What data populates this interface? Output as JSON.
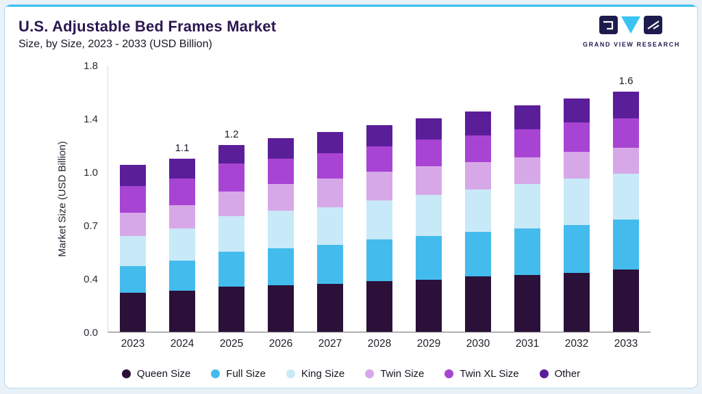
{
  "page": {
    "title": "U.S. Adjustable Bed Frames Market",
    "subtitle": "Size, by Size, 2023 - 2033 (USD Billion)",
    "brand": "GRAND VIEW RESEARCH"
  },
  "colors": {
    "accent_line": "#3bc4f2",
    "card_border": "#b9d7ea",
    "page_background": "#e9f2f9",
    "title_text": "#2b1650",
    "logo_navy": "#1e1b4d",
    "logo_cyan": "#3bc4f2"
  },
  "chart_data": {
    "type": "bar",
    "stacked": true,
    "title": "U.S. Adjustable Bed Frames Market Size, by Size, 2023 - 2033 (USD Billion)",
    "xlabel": "",
    "ylabel": "Market Size (USD Billion)",
    "grid": false,
    "legend_position": "bottom",
    "ylim": [
      0,
      1.8
    ],
    "yticks": [
      0.0,
      0.4,
      0.7,
      1.0,
      1.4,
      1.8
    ],
    "ytick_labels": [
      "0.0",
      "0.4",
      "0.7",
      "1.0",
      "1.4",
      "1.8"
    ],
    "categories": [
      "2023",
      "2024",
      "2025",
      "2026",
      "2027",
      "2028",
      "2029",
      "2030",
      "2031",
      "2032",
      "2033"
    ],
    "series": [
      {
        "name": "Queen Size",
        "color": "#2b1039",
        "values": [
          0.29,
          0.31,
          0.34,
          0.35,
          0.36,
          0.38,
          0.39,
          0.41,
          0.42,
          0.43,
          0.45
        ]
      },
      {
        "name": "Full Size",
        "color": "#44bbed",
        "values": [
          0.18,
          0.19,
          0.21,
          0.22,
          0.23,
          0.24,
          0.25,
          0.25,
          0.26,
          0.27,
          0.28
        ]
      },
      {
        "name": "King Size",
        "color": "#c8e9f7",
        "values": [
          0.17,
          0.18,
          0.2,
          0.21,
          0.21,
          0.22,
          0.23,
          0.24,
          0.25,
          0.26,
          0.26
        ]
      },
      {
        "name": "Twin Size",
        "color": "#d7a8e8",
        "values": [
          0.13,
          0.13,
          0.14,
          0.15,
          0.16,
          0.16,
          0.17,
          0.17,
          0.18,
          0.19,
          0.19
        ]
      },
      {
        "name": "Twin XL Size",
        "color": "#a844d4",
        "values": [
          0.15,
          0.15,
          0.17,
          0.17,
          0.18,
          0.19,
          0.2,
          0.2,
          0.21,
          0.22,
          0.22
        ]
      },
      {
        "name": "Other",
        "color": "#5b1e99",
        "values": [
          0.13,
          0.14,
          0.14,
          0.15,
          0.16,
          0.16,
          0.16,
          0.18,
          0.18,
          0.18,
          0.2
        ]
      }
    ],
    "totals": [
      1.05,
      1.1,
      1.2,
      1.25,
      1.3,
      1.35,
      1.4,
      1.45,
      1.5,
      1.55,
      1.6
    ],
    "bar_labels": {
      "2024": "1.1",
      "2025": "1.2",
      "2033": "1.6"
    }
  }
}
